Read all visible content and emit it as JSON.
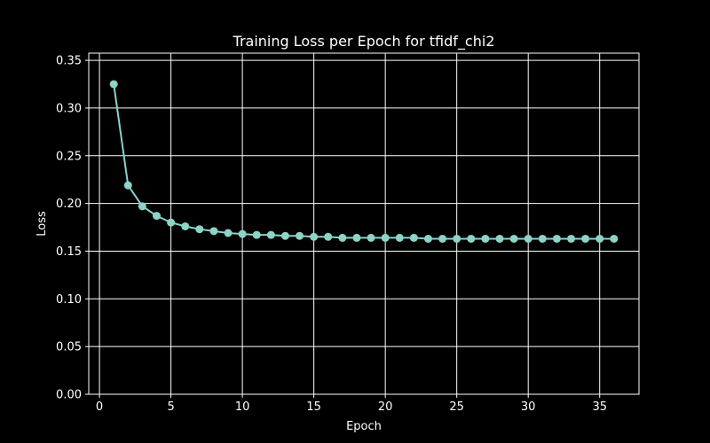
{
  "chart_data": {
    "type": "line",
    "title": "Training Loss per Epoch for tfidf_chi2",
    "xlabel": "Epoch",
    "ylabel": "Loss",
    "xlim": [
      -0.75,
      37.75
    ],
    "ylim": [
      0,
      0.3575
    ],
    "x_ticks": [
      0,
      5,
      10,
      15,
      20,
      25,
      30,
      35
    ],
    "y_ticks": [
      0.0,
      0.05,
      0.1,
      0.15,
      0.2,
      0.25,
      0.3,
      0.35
    ],
    "x_tick_labels": [
      "0",
      "5",
      "10",
      "15",
      "20",
      "25",
      "30",
      "35"
    ],
    "y_tick_labels": [
      "0.00",
      "0.05",
      "0.10",
      "0.15",
      "0.20",
      "0.25",
      "0.30",
      "0.35"
    ],
    "grid": true,
    "series": [
      {
        "color": "#8dd3c7",
        "marker": "circle",
        "x": [
          1,
          2,
          3,
          4,
          5,
          6,
          7,
          8,
          9,
          10,
          11,
          12,
          13,
          14,
          15,
          16,
          17,
          18,
          19,
          20,
          21,
          22,
          23,
          24,
          25,
          26,
          27,
          28,
          29,
          30,
          31,
          32,
          33,
          34,
          35,
          36
        ],
        "values": [
          0.325,
          0.219,
          0.197,
          0.187,
          0.18,
          0.176,
          0.173,
          0.171,
          0.169,
          0.168,
          0.167,
          0.167,
          0.166,
          0.166,
          0.165,
          0.165,
          0.164,
          0.164,
          0.164,
          0.164,
          0.164,
          0.164,
          0.163,
          0.163,
          0.163,
          0.163,
          0.163,
          0.163,
          0.163,
          0.163,
          0.163,
          0.163,
          0.163,
          0.163,
          0.163,
          0.163
        ]
      }
    ]
  }
}
